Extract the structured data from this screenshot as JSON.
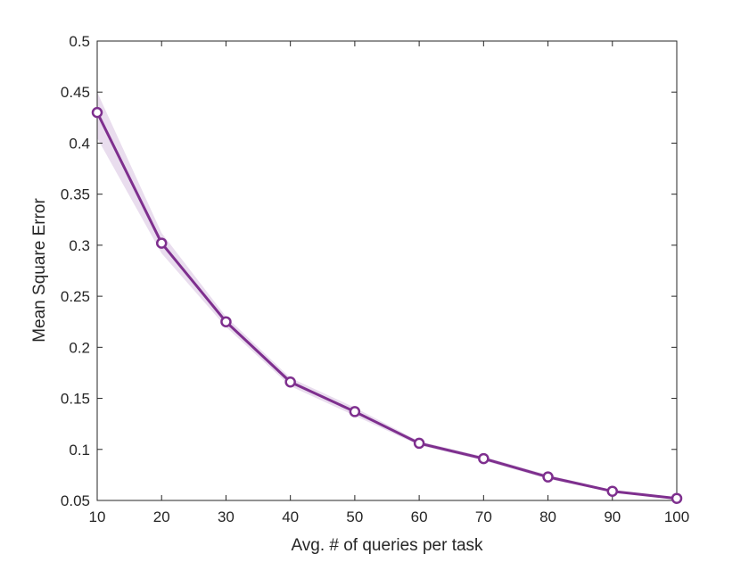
{
  "chart_data": {
    "type": "line",
    "title": "",
    "xlabel": "Avg. # of queries per task",
    "ylabel": "Mean Square Error",
    "xlim": [
      10,
      100
    ],
    "ylim": [
      0.05,
      0.5
    ],
    "xticks": [
      10,
      20,
      30,
      40,
      50,
      60,
      70,
      80,
      90,
      100
    ],
    "yticks": [
      0.05,
      0.1,
      0.15,
      0.2,
      0.25,
      0.3,
      0.35,
      0.4,
      0.45,
      0.5
    ],
    "xtick_labels": [
      "10",
      "20",
      "30",
      "40",
      "50",
      "60",
      "70",
      "80",
      "90",
      "100"
    ],
    "ytick_labels": [
      "0.05",
      "0.1",
      "0.15",
      "0.2",
      "0.25",
      "0.3",
      "0.35",
      "0.4",
      "0.45",
      "0.5"
    ],
    "grid": false,
    "series": [
      {
        "x": [
          10,
          20,
          30,
          40,
          50,
          60,
          70,
          80,
          90,
          100
        ],
        "values": [
          0.43,
          0.302,
          0.225,
          0.166,
          0.137,
          0.106,
          0.091,
          0.073,
          0.059,
          0.052
        ],
        "lower": [
          0.405,
          0.292,
          0.22,
          0.162,
          0.133,
          0.104,
          0.089,
          0.071,
          0.058,
          0.051
        ],
        "upper": [
          0.45,
          0.312,
          0.23,
          0.17,
          0.141,
          0.108,
          0.093,
          0.075,
          0.06,
          0.053
        ],
        "color": "#7E2F8E",
        "band_color": "#E9DDEE",
        "marker": "circle"
      }
    ]
  }
}
